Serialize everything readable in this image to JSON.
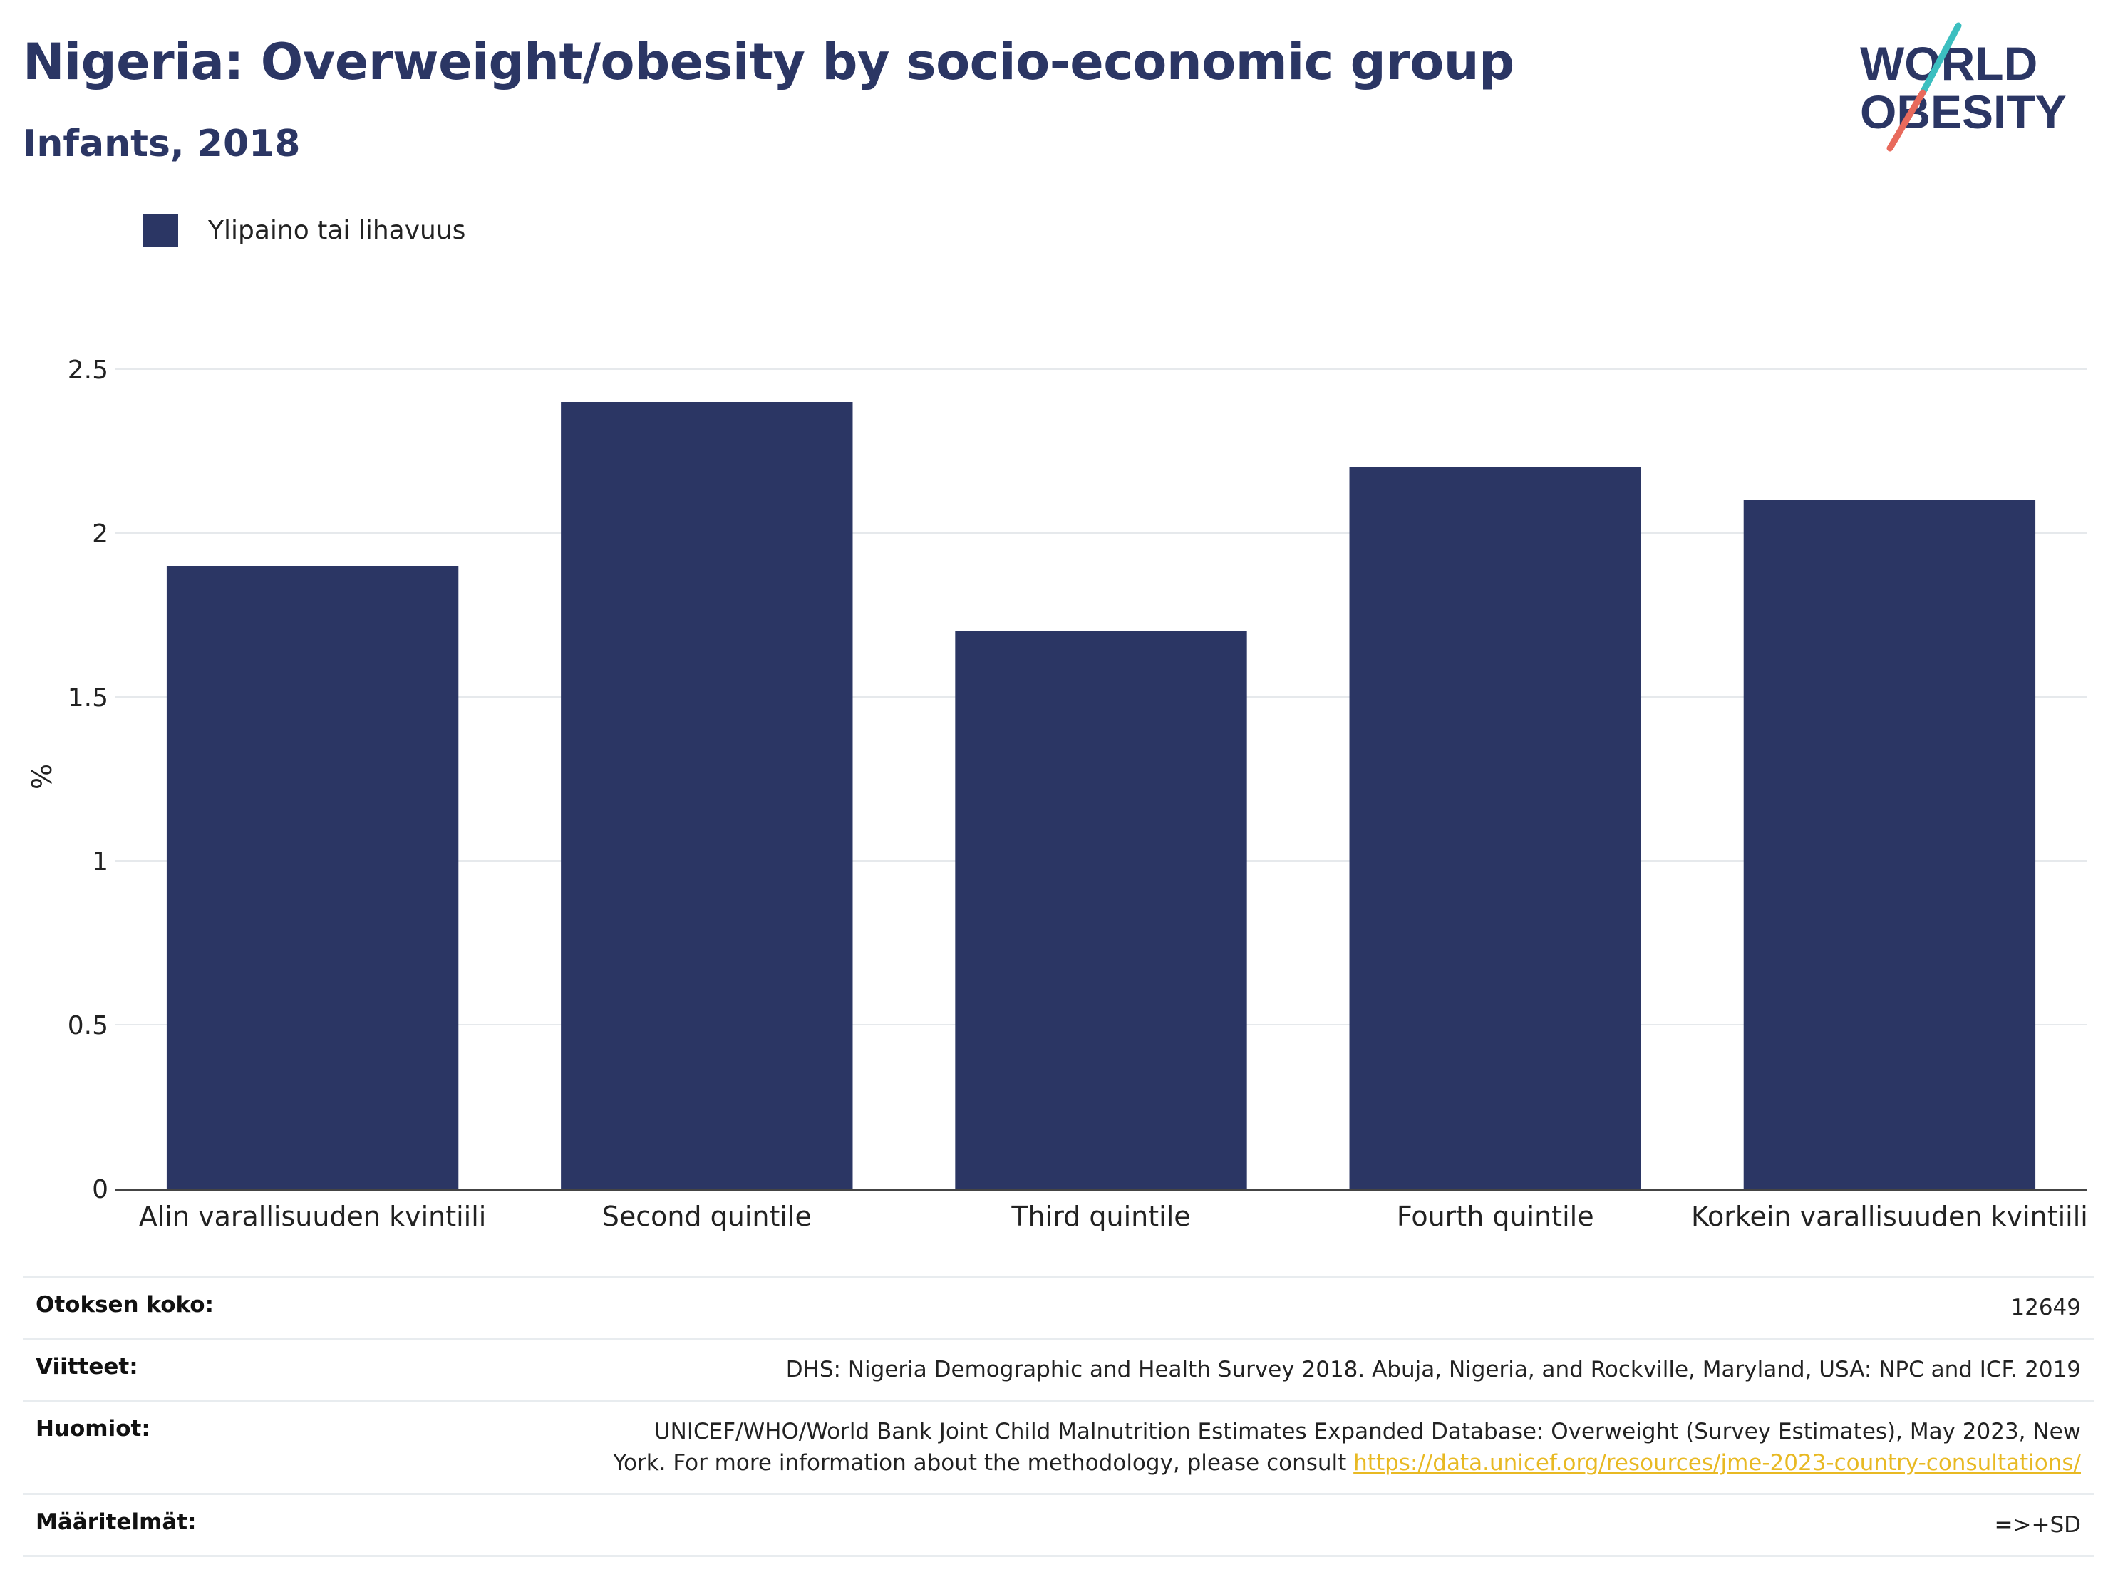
{
  "header": {
    "title": "Nigeria: Overweight/obesity by socio-economic group",
    "subtitle": "Infants, 2018"
  },
  "logo": {
    "line1": "WORLD",
    "line2": "OBESITY",
    "colors": {
      "navy": "#2b3664",
      "teal": "#3cbfc0",
      "coral": "#e86a5c"
    }
  },
  "chart_data": {
    "type": "bar",
    "categories": [
      "Alin varallisuuden kvintiili",
      "Second quintile",
      "Third quintile",
      "Fourth quintile",
      "Korkein varallisuuden kvintiili"
    ],
    "series": [
      {
        "name": "Ylipaino tai lihavuus",
        "values": [
          1.9,
          2.4,
          1.7,
          2.2,
          2.1
        ],
        "color": "#2b3664"
      }
    ],
    "ylabel": "%",
    "ylim": [
      0,
      2.5
    ],
    "yticks": [
      "0",
      "0.5",
      "1",
      "1.5",
      "2",
      "2.5"
    ],
    "grid": true,
    "legend": "top-left"
  },
  "info": {
    "sample_size": {
      "label": "Otoksen koko:",
      "value": "12649"
    },
    "references": {
      "label": "Viitteet:",
      "value": "DHS: Nigeria Demographic and Health Survey 2018. Abuja, Nigeria, and Rockville, Maryland, USA: NPC and ICF. 2019"
    },
    "notes": {
      "label": "Huomiot:",
      "value": "UNICEF/WHO/World Bank Joint Child Malnutrition Estimates Expanded Database: Overweight (Survey Estimates), May 2023, New York. For more information about the methodology, please consult",
      "link": "https://data.unicef.org/resources/jme-2023-country-consultations/"
    },
    "definitions": {
      "label": "Määritelmät:",
      "value": "=>+SD"
    }
  }
}
